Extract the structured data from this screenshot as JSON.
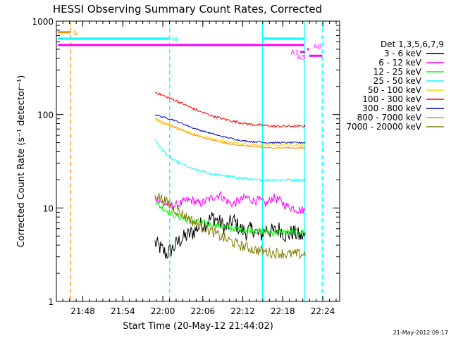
{
  "chart_data": {
    "type": "line",
    "title": "HESSI Observing Summary Count Rates, Corrected",
    "xlabel": "Start Time (20-May-12 21:44:02)",
    "ylabel": "Corrected Count Rate (s⁻¹ detector⁻¹)",
    "x_unit": "minutes after 21:44:02",
    "xlim": [
      0,
      42.5
    ],
    "ylim": [
      1,
      1000
    ],
    "y_scale": "log",
    "x_ticks": [
      {
        "value": 3.97,
        "label": "21:48"
      },
      {
        "value": 9.97,
        "label": "21:54"
      },
      {
        "value": 15.97,
        "label": "22:00"
      },
      {
        "value": 21.97,
        "label": "22:06"
      },
      {
        "value": 27.97,
        "label": "22:12"
      },
      {
        "value": 33.97,
        "label": "22:18"
      },
      {
        "value": 39.97,
        "label": "22:24"
      }
    ],
    "y_ticks": [
      {
        "value": 1,
        "label": "1"
      },
      {
        "value": 10,
        "label": "10"
      },
      {
        "value": 100,
        "label": "100"
      },
      {
        "value": 1000,
        "label": "1000"
      }
    ],
    "legend": {
      "title": "Det 1,3,5,6,7,9",
      "placement": "right-outside"
    },
    "series": [
      {
        "name": "3 - 6 keV",
        "color": "#000000",
        "points": [
          [
            14.8,
            4.2
          ],
          [
            15.5,
            3.8
          ],
          [
            16.5,
            3.2
          ],
          [
            17.5,
            3.7
          ],
          [
            18.5,
            4.5
          ],
          [
            19.5,
            5.0
          ],
          [
            20.5,
            5.5
          ],
          [
            21.5,
            6.5
          ],
          [
            22.5,
            7.0
          ],
          [
            23.5,
            8.0
          ],
          [
            24.5,
            7.0
          ],
          [
            25.5,
            6.0
          ],
          [
            26.5,
            7.5
          ],
          [
            27.5,
            6.0
          ],
          [
            28.5,
            5.5
          ],
          [
            29.5,
            6.0
          ],
          [
            30.5,
            5.0
          ],
          [
            31.5,
            6.0
          ],
          [
            32.5,
            5.5
          ],
          [
            33.5,
            6.0
          ],
          [
            34.5,
            5.0
          ],
          [
            35.5,
            5.5
          ],
          [
            36.5,
            5.0
          ],
          [
            37.4,
            5.0
          ]
        ]
      },
      {
        "name": "6 - 12 keV",
        "color": "#ff00ff",
        "points": [
          [
            14.8,
            13
          ],
          [
            15.5,
            12
          ],
          [
            16.5,
            11
          ],
          [
            17.5,
            10.5
          ],
          [
            18.5,
            11
          ],
          [
            19.5,
            12
          ],
          [
            20.5,
            12
          ],
          [
            21.5,
            11
          ],
          [
            22.5,
            12
          ],
          [
            23.5,
            13
          ],
          [
            24.5,
            14
          ],
          [
            25.5,
            12
          ],
          [
            26.5,
            11
          ],
          [
            27.5,
            12
          ],
          [
            28.5,
            13
          ],
          [
            29.5,
            12
          ],
          [
            30.5,
            12
          ],
          [
            31.5,
            11
          ],
          [
            32.5,
            13
          ],
          [
            33.5,
            12
          ],
          [
            34.5,
            10.5
          ],
          [
            35.5,
            10
          ],
          [
            36.5,
            9.5
          ],
          [
            37.4,
            9.5
          ]
        ]
      },
      {
        "name": "12 - 25 keV",
        "color": "#00ff00",
        "points": [
          [
            14.8,
            12
          ],
          [
            15.5,
            10.5
          ],
          [
            16.5,
            9.5
          ],
          [
            17.5,
            8.5
          ],
          [
            18.5,
            8.0
          ],
          [
            19.5,
            7.5
          ],
          [
            20.5,
            7.2
          ],
          [
            21.5,
            7.0
          ],
          [
            22.5,
            6.8
          ],
          [
            23.5,
            6.5
          ],
          [
            24.5,
            6.5
          ],
          [
            25.5,
            6.2
          ],
          [
            26.5,
            6.0
          ],
          [
            27.5,
            6.0
          ],
          [
            28.5,
            5.8
          ],
          [
            29.5,
            5.8
          ],
          [
            30.5,
            5.6
          ],
          [
            31.5,
            5.6
          ],
          [
            32.5,
            5.5
          ],
          [
            33.5,
            5.5
          ],
          [
            34.5,
            5.5
          ],
          [
            35.5,
            5.5
          ],
          [
            36.5,
            5.5
          ],
          [
            37.4,
            5.5
          ]
        ]
      },
      {
        "name": "25 - 50 keV",
        "color": "#00ffff",
        "points": [
          [
            14.8,
            55
          ],
          [
            15.5,
            45
          ],
          [
            16.5,
            38
          ],
          [
            17.5,
            33
          ],
          [
            18.5,
            30
          ],
          [
            19.5,
            28
          ],
          [
            20.5,
            26
          ],
          [
            21.5,
            25
          ],
          [
            22.5,
            24
          ],
          [
            23.5,
            23
          ],
          [
            24.5,
            22.5
          ],
          [
            25.5,
            22
          ],
          [
            26.5,
            21.5
          ],
          [
            27.5,
            21
          ],
          [
            28.5,
            20.5
          ],
          [
            29.5,
            20
          ],
          [
            30.5,
            20
          ],
          [
            31.5,
            20
          ],
          [
            32.5,
            20
          ],
          [
            33.5,
            20
          ],
          [
            34.5,
            20
          ],
          [
            35.5,
            20
          ],
          [
            36.5,
            20
          ],
          [
            37.4,
            20
          ]
        ]
      },
      {
        "name": "50 - 100 keV",
        "color": "#ffd700",
        "points": [
          [
            14.8,
            88
          ],
          [
            15.5,
            82
          ],
          [
            16.5,
            78
          ],
          [
            17.5,
            74
          ],
          [
            18.5,
            70
          ],
          [
            19.5,
            66
          ],
          [
            20.5,
            62
          ],
          [
            21.5,
            59
          ],
          [
            22.5,
            57
          ],
          [
            23.5,
            55
          ],
          [
            24.5,
            53
          ],
          [
            25.5,
            51
          ],
          [
            26.5,
            50
          ],
          [
            27.5,
            49
          ],
          [
            28.5,
            48
          ],
          [
            29.5,
            48
          ],
          [
            30.5,
            47
          ],
          [
            31.5,
            47
          ],
          [
            32.5,
            47
          ],
          [
            33.5,
            47
          ],
          [
            34.5,
            47
          ],
          [
            35.5,
            47
          ],
          [
            36.5,
            47
          ],
          [
            37.4,
            47
          ]
        ]
      },
      {
        "name": "100 - 300 keV",
        "color": "#ff0000",
        "points": [
          [
            14.8,
            175
          ],
          [
            15.5,
            165
          ],
          [
            16.5,
            155
          ],
          [
            17.5,
            145
          ],
          [
            18.5,
            135
          ],
          [
            19.5,
            125
          ],
          [
            20.5,
            116
          ],
          [
            21.5,
            108
          ],
          [
            22.5,
            102
          ],
          [
            23.5,
            96
          ],
          [
            24.5,
            92
          ],
          [
            25.5,
            88
          ],
          [
            26.5,
            85
          ],
          [
            27.5,
            82
          ],
          [
            28.5,
            80
          ],
          [
            29.5,
            78
          ],
          [
            30.5,
            77
          ],
          [
            31.5,
            76
          ],
          [
            32.5,
            75
          ],
          [
            33.5,
            75
          ],
          [
            34.5,
            75
          ],
          [
            35.5,
            75
          ],
          [
            36.5,
            75
          ],
          [
            37.4,
            75
          ]
        ]
      },
      {
        "name": "300 - 800 keV",
        "color": "#0000cc",
        "points": [
          [
            14.8,
            100
          ],
          [
            15.5,
            96
          ],
          [
            16.5,
            92
          ],
          [
            17.5,
            88
          ],
          [
            18.5,
            82
          ],
          [
            19.5,
            77
          ],
          [
            20.5,
            72
          ],
          [
            21.5,
            68
          ],
          [
            22.5,
            65
          ],
          [
            23.5,
            62
          ],
          [
            24.5,
            59
          ],
          [
            25.5,
            57
          ],
          [
            26.5,
            55
          ],
          [
            27.5,
            53
          ],
          [
            28.5,
            52
          ],
          [
            29.5,
            51
          ],
          [
            30.5,
            51
          ],
          [
            31.5,
            50
          ],
          [
            32.5,
            50
          ],
          [
            33.5,
            50
          ],
          [
            34.5,
            50
          ],
          [
            35.5,
            50
          ],
          [
            36.5,
            50
          ],
          [
            37.4,
            50
          ]
        ]
      },
      {
        "name": "800 - 7000 keV",
        "color": "#ff8c00",
        "points": [
          [
            14.8,
            92
          ],
          [
            15.5,
            86
          ],
          [
            16.5,
            80
          ],
          [
            17.5,
            75
          ],
          [
            18.5,
            70
          ],
          [
            19.5,
            65
          ],
          [
            20.5,
            61
          ],
          [
            21.5,
            58
          ],
          [
            22.5,
            55
          ],
          [
            23.5,
            53
          ],
          [
            24.5,
            51
          ],
          [
            25.5,
            49
          ],
          [
            26.5,
            48
          ],
          [
            27.5,
            47
          ],
          [
            28.5,
            46
          ],
          [
            29.5,
            45
          ],
          [
            30.5,
            45
          ],
          [
            31.5,
            44
          ],
          [
            32.5,
            44
          ],
          [
            33.5,
            44
          ],
          [
            34.5,
            44
          ],
          [
            35.5,
            44
          ],
          [
            36.5,
            44
          ],
          [
            37.4,
            44
          ]
        ]
      },
      {
        "name": "7000 - 20000 keV",
        "color": "#808000",
        "points": [
          [
            14.8,
            14
          ],
          [
            15.5,
            13
          ],
          [
            16.5,
            11.5
          ],
          [
            17.5,
            10
          ],
          [
            18.5,
            9
          ],
          [
            19.5,
            8
          ],
          [
            20.5,
            7.2
          ],
          [
            21.5,
            6.5
          ],
          [
            22.5,
            6.0
          ],
          [
            23.5,
            5.5
          ],
          [
            24.5,
            5.0
          ],
          [
            25.5,
            4.6
          ],
          [
            26.5,
            4.3
          ],
          [
            27.5,
            4.0
          ],
          [
            28.5,
            3.8
          ],
          [
            29.5,
            3.6
          ],
          [
            30.5,
            3.5
          ],
          [
            31.5,
            3.4
          ],
          [
            32.5,
            3.3
          ],
          [
            33.5,
            3.3
          ],
          [
            34.5,
            3.2
          ],
          [
            35.5,
            3.2
          ],
          [
            36.5,
            3.2
          ],
          [
            37.4,
            3.2
          ]
        ]
      }
    ],
    "state_bars": [
      {
        "label": "S",
        "color": "#ff8c00",
        "x0": 0.2,
        "x1": 2.1,
        "y": 760
      },
      {
        "label": "N",
        "color": "#00ffff",
        "x0": 0.2,
        "x1": 17.0,
        "y": 650
      },
      {
        "label": "",
        "color": "#00ffff",
        "x0": 30.9,
        "x1": 37.2,
        "y": 650
      },
      {
        "label": "",
        "color": "#ff00ff",
        "x0": 0.2,
        "x1": 37.2,
        "y": 555
      },
      {
        "label": "A0",
        "color": "#ff00ff",
        "x0": 37.6,
        "x1": 37.9,
        "y": 500
      },
      {
        "label": "A1",
        "color": "#ff00ff",
        "x0": 36.6,
        "x1": 37.3,
        "y": 470
      },
      {
        "label": "A3",
        "color": "#ff00ff",
        "x0": 37.9,
        "x1": 39.9,
        "y": 425
      }
    ],
    "vertical_lines": [
      {
        "x": 2.1,
        "color": "#ff8c00",
        "style": "dashed"
      },
      {
        "x": 17.0,
        "color": "#00ffff",
        "style": "dashed"
      },
      {
        "x": 30.9,
        "color": "#00ffff",
        "style": "solid"
      },
      {
        "x": 37.2,
        "color": "#00ffff",
        "style": "solid"
      },
      {
        "x": 39.9,
        "color": "#00ffff",
        "style": "dashed"
      }
    ],
    "footer_date": "21-May-2012 09:17",
    "grid": false
  }
}
